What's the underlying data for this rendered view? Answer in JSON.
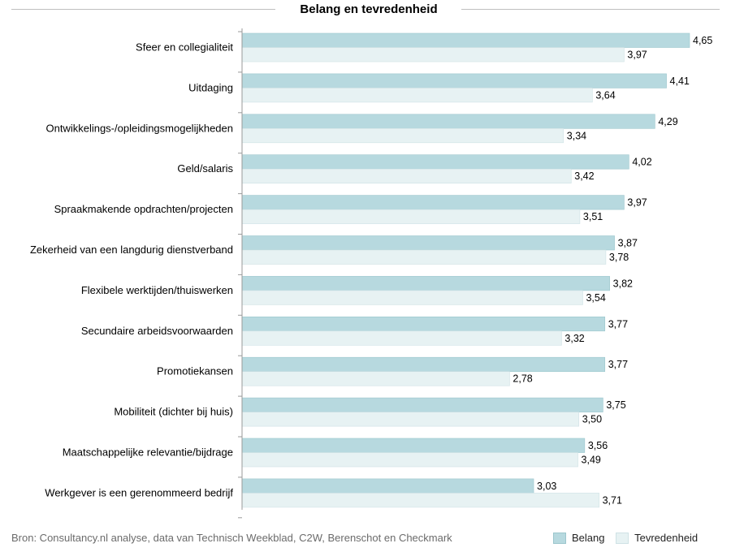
{
  "chart_data": {
    "type": "bar",
    "orientation": "horizontal",
    "title": "Belang en tevredenheid",
    "categories": [
      "Sfeer en collegialiteit",
      "Uitdaging",
      "Ontwikkelings-/opleidingsmogelijkheden",
      "Geld/salaris",
      "Spraakmakende opdrachten/projecten",
      "Zekerheid van een langdurig dienstverband",
      "Flexibele werktijden/thuiswerken",
      "Secundaire arbeidsvoorwaarden",
      "Promotiekansen",
      "Mobiliteit (dichter bij huis)",
      "Maatschappelijke relevantie/bijdrage",
      "Werkgever is een gerenommeerd bedrijf"
    ],
    "series": [
      {
        "name": "Belang",
        "color": "#b7d9df",
        "values": [
          4.65,
          4.41,
          4.29,
          4.02,
          3.97,
          3.87,
          3.82,
          3.77,
          3.77,
          3.75,
          3.56,
          3.03
        ],
        "labels": [
          "4,65",
          "4,41",
          "4,29",
          "4,02",
          "3,97",
          "3,87",
          "3,82",
          "3,77",
          "3,77",
          "3,75",
          "3,56",
          "3,03"
        ]
      },
      {
        "name": "Tevredenheid",
        "color": "#e7f2f3",
        "values": [
          3.97,
          3.64,
          3.34,
          3.42,
          3.51,
          3.78,
          3.54,
          3.32,
          2.78,
          3.5,
          3.49,
          3.71
        ],
        "labels": [
          "3,97",
          "3,64",
          "3,34",
          "3,42",
          "3,51",
          "3,78",
          "3,54",
          "3,32",
          "2,78",
          "3,50",
          "3,49",
          "3,71"
        ]
      }
    ],
    "xlim": [
      0,
      4.65
    ],
    "legend_position": "bottom-right",
    "grid": false
  },
  "source": "Bron: Consultancy.nl analyse, data van Technisch Weekblad, C2W, Berenschot en Checkmark"
}
